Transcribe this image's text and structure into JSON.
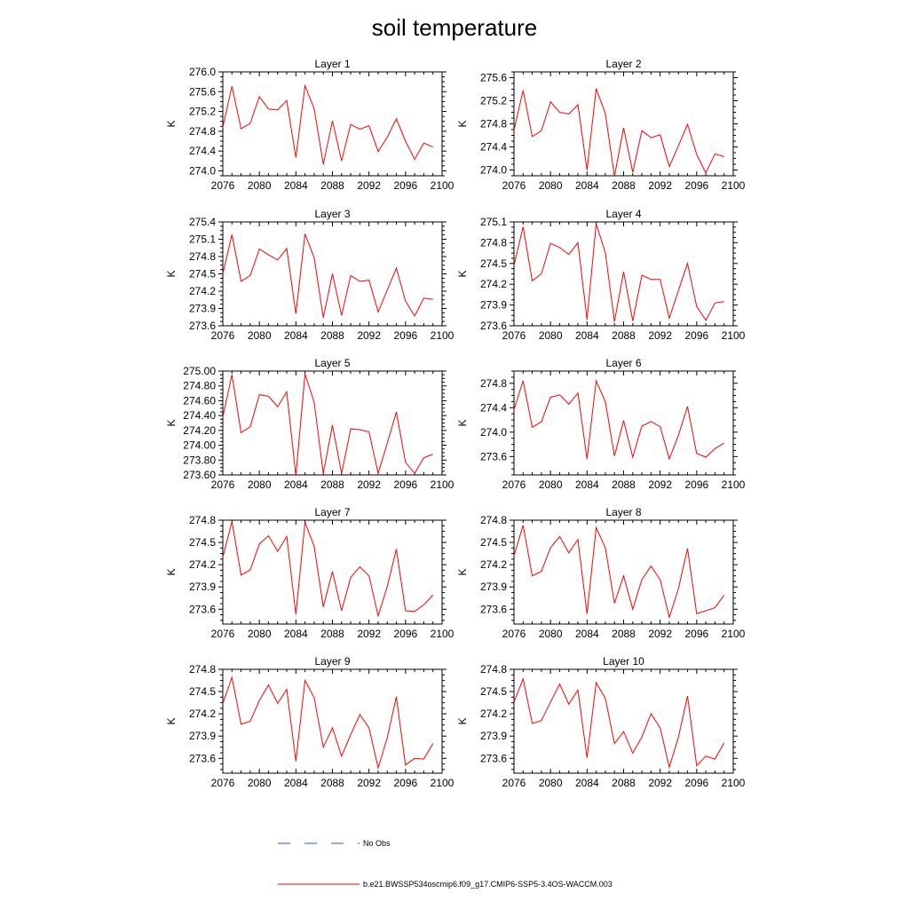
{
  "title": "soil temperature",
  "legend": [
    {
      "label": "No Obs",
      "color": "#3a4fd8",
      "dash": true
    },
    {
      "label": "b.e21.BWSSP534oscmip6.f09_g17.CMIP6-SSP5-3.4OS-WACCM.003",
      "color": "#ff0000",
      "dash": false
    }
  ],
  "chart_data": [
    {
      "type": "line",
      "title": "Layer 1",
      "ylabel": "K",
      "xlim": [
        2076,
        2100
      ],
      "ylim": [
        273.9,
        276.0
      ],
      "xticks": [
        "2076",
        "2080",
        "2084",
        "2088",
        "2092",
        "2096",
        "2100"
      ],
      "yticks": [
        "274.0",
        "274.4",
        "274.8",
        "275.2",
        "275.6",
        "276.0"
      ],
      "series": [
        {
          "color": "#ff0000",
          "x": [
            2076,
            2077,
            2078,
            2079,
            2080,
            2081,
            2082,
            2083,
            2084,
            2085,
            2086,
            2087,
            2088,
            2089,
            2090,
            2091,
            2092,
            2093,
            2094,
            2095,
            2096,
            2097,
            2098,
            2099
          ],
          "y": [
            274.88,
            275.71,
            274.85,
            274.96,
            275.5,
            275.25,
            275.23,
            275.42,
            274.27,
            275.72,
            275.26,
            274.13,
            275.01,
            274.2,
            274.94,
            274.84,
            274.91,
            274.39,
            274.68,
            275.05,
            274.6,
            274.23,
            274.56,
            274.48
          ]
        }
      ]
    },
    {
      "type": "line",
      "title": "Layer 2",
      "ylabel": "K",
      "xlim": [
        2076,
        2100
      ],
      "ylim": [
        273.9,
        275.7
      ],
      "xticks": [
        "2076",
        "2080",
        "2084",
        "2088",
        "2092",
        "2096",
        "2100"
      ],
      "yticks": [
        "274.0",
        "274.4",
        "274.8",
        "275.2",
        "275.6"
      ],
      "series": [
        {
          "color": "#ff0000",
          "x": [
            2076,
            2077,
            2078,
            2079,
            2080,
            2081,
            2082,
            2083,
            2084,
            2085,
            2086,
            2087,
            2088,
            2089,
            2090,
            2091,
            2092,
            2093,
            2094,
            2095,
            2096,
            2097,
            2098,
            2099
          ],
          "y": [
            274.69,
            275.38,
            274.58,
            274.68,
            275.18,
            275.0,
            274.97,
            275.13,
            274.0,
            275.41,
            274.98,
            273.89,
            274.73,
            273.96,
            274.68,
            274.56,
            274.61,
            274.06,
            274.42,
            274.79,
            274.27,
            273.95,
            274.28,
            274.23
          ]
        }
      ]
    },
    {
      "type": "line",
      "title": "Layer 3",
      "ylabel": "K",
      "xlim": [
        2076,
        2100
      ],
      "ylim": [
        273.6,
        275.4
      ],
      "xticks": [
        "2076",
        "2080",
        "2084",
        "2088",
        "2092",
        "2096",
        "2100"
      ],
      "yticks": [
        "273.6",
        "273.9",
        "274.2",
        "274.5",
        "274.8",
        "275.1",
        "275.4"
      ],
      "series": [
        {
          "color": "#ff0000",
          "x": [
            2076,
            2077,
            2078,
            2079,
            2080,
            2081,
            2082,
            2083,
            2084,
            2085,
            2086,
            2087,
            2088,
            2089,
            2090,
            2091,
            2092,
            2093,
            2094,
            2095,
            2096,
            2097,
            2098,
            2099
          ],
          "y": [
            274.5,
            275.18,
            274.37,
            274.47,
            274.93,
            274.83,
            274.74,
            274.94,
            273.81,
            275.19,
            274.78,
            273.74,
            274.5,
            273.78,
            274.47,
            274.37,
            274.39,
            273.84,
            274.22,
            274.6,
            274.03,
            273.77,
            274.08,
            274.06
          ]
        }
      ]
    },
    {
      "type": "line",
      "title": "Layer 4",
      "ylabel": "K",
      "xlim": [
        2076,
        2100
      ],
      "ylim": [
        273.6,
        275.1
      ],
      "xticks": [
        "2076",
        "2080",
        "2084",
        "2088",
        "2092",
        "2096",
        "2100"
      ],
      "yticks": [
        "273.6",
        "273.9",
        "274.2",
        "274.5",
        "274.8",
        "275.1"
      ],
      "series": [
        {
          "color": "#ff0000",
          "x": [
            2076,
            2077,
            2078,
            2079,
            2080,
            2081,
            2082,
            2083,
            2084,
            2085,
            2086,
            2087,
            2088,
            2089,
            2090,
            2091,
            2092,
            2093,
            2094,
            2095,
            2096,
            2097,
            2098,
            2099
          ],
          "y": [
            274.47,
            275.03,
            274.25,
            274.35,
            274.79,
            274.73,
            274.63,
            274.8,
            273.69,
            275.07,
            274.66,
            273.66,
            274.38,
            273.67,
            274.33,
            274.27,
            274.27,
            273.71,
            274.11,
            274.5,
            273.88,
            273.68,
            273.93,
            273.95
          ]
        }
      ]
    },
    {
      "type": "line",
      "title": "Layer 5",
      "ylabel": "K",
      "xlim": [
        2076,
        2100
      ],
      "ylim": [
        273.6,
        275.0
      ],
      "xticks": [
        "2076",
        "2080",
        "2084",
        "2088",
        "2092",
        "2096",
        "2100"
      ],
      "yticks": [
        "273.60",
        "273.80",
        "274.00",
        "274.20",
        "274.40",
        "274.60",
        "274.80",
        "275.00"
      ],
      "series": [
        {
          "color": "#ff0000",
          "x": [
            2076,
            2077,
            2078,
            2079,
            2080,
            2081,
            2082,
            2083,
            2084,
            2085,
            2086,
            2087,
            2088,
            2089,
            2090,
            2091,
            2092,
            2093,
            2094,
            2095,
            2096,
            2097,
            2098,
            2099
          ],
          "y": [
            274.38,
            274.95,
            274.17,
            274.25,
            274.68,
            274.66,
            274.52,
            274.72,
            273.59,
            274.96,
            274.58,
            273.62,
            274.27,
            273.62,
            274.22,
            274.21,
            274.18,
            273.62,
            274.03,
            274.45,
            273.77,
            273.62,
            273.83,
            273.88
          ]
        }
      ]
    },
    {
      "type": "line",
      "title": "Layer 6",
      "ylabel": "K",
      "xlim": [
        2076,
        2100
      ],
      "ylim": [
        273.3,
        275.0
      ],
      "xticks": [
        "2076",
        "2080",
        "2084",
        "2088",
        "2092",
        "2096",
        "2100"
      ],
      "yticks": [
        "273.6",
        "274.0",
        "274.4",
        "274.8"
      ],
      "series": [
        {
          "color": "#ff0000",
          "x": [
            2076,
            2077,
            2078,
            2079,
            2080,
            2081,
            2082,
            2083,
            2084,
            2085,
            2086,
            2087,
            2088,
            2089,
            2090,
            2091,
            2092,
            2093,
            2094,
            2095,
            2096,
            2097,
            2098,
            2099
          ],
          "y": [
            274.37,
            274.84,
            274.08,
            274.17,
            274.57,
            274.61,
            274.46,
            274.64,
            273.56,
            274.84,
            274.5,
            273.61,
            274.19,
            273.59,
            274.1,
            274.17,
            274.09,
            273.56,
            273.95,
            274.42,
            273.65,
            273.59,
            273.73,
            273.82
          ]
        }
      ]
    },
    {
      "type": "line",
      "title": "Layer 7",
      "ylabel": "K",
      "xlim": [
        2076,
        2100
      ],
      "ylim": [
        273.4,
        274.8
      ],
      "xticks": [
        "2076",
        "2080",
        "2084",
        "2088",
        "2092",
        "2096",
        "2100"
      ],
      "yticks": [
        "273.6",
        "273.9",
        "274.2",
        "274.5",
        "274.8"
      ],
      "series": [
        {
          "color": "#ff0000",
          "x": [
            2076,
            2077,
            2078,
            2079,
            2080,
            2081,
            2082,
            2083,
            2084,
            2085,
            2086,
            2087,
            2088,
            2089,
            2090,
            2091,
            2092,
            2093,
            2094,
            2095,
            2096,
            2097,
            2098,
            2099
          ],
          "y": [
            274.3,
            274.78,
            274.06,
            274.13,
            274.48,
            274.59,
            274.38,
            274.58,
            273.53,
            274.77,
            274.45,
            273.63,
            274.11,
            273.58,
            274.03,
            274.17,
            274.05,
            273.51,
            273.91,
            274.41,
            273.58,
            273.57,
            273.66,
            273.79
          ]
        }
      ]
    },
    {
      "type": "line",
      "title": "Layer 8",
      "ylabel": "K",
      "xlim": [
        2076,
        2100
      ],
      "ylim": [
        273.4,
        274.8
      ],
      "xticks": [
        "2076",
        "2080",
        "2084",
        "2088",
        "2092",
        "2096",
        "2100"
      ],
      "yticks": [
        "273.6",
        "273.9",
        "274.2",
        "274.5",
        "274.8"
      ],
      "series": [
        {
          "color": "#ff0000",
          "x": [
            2076,
            2077,
            2078,
            2079,
            2080,
            2081,
            2082,
            2083,
            2084,
            2085,
            2086,
            2087,
            2088,
            2089,
            2090,
            2091,
            2092,
            2093,
            2094,
            2095,
            2096,
            2097,
            2098,
            2099
          ],
          "y": [
            274.32,
            274.73,
            274.05,
            274.11,
            274.43,
            274.58,
            274.36,
            274.54,
            273.54,
            274.7,
            274.43,
            273.68,
            274.05,
            273.6,
            274.0,
            274.18,
            274.0,
            273.49,
            273.88,
            274.42,
            273.54,
            273.58,
            273.62,
            273.79
          ]
        }
      ]
    },
    {
      "type": "line",
      "title": "Layer 9",
      "ylabel": "K",
      "xlim": [
        2076,
        2100
      ],
      "ylim": [
        273.4,
        274.8
      ],
      "xticks": [
        "2076",
        "2080",
        "2084",
        "2088",
        "2092",
        "2096",
        "2100"
      ],
      "yticks": [
        "273.6",
        "273.9",
        "274.2",
        "274.5",
        "274.8"
      ],
      "series": [
        {
          "color": "#ff0000",
          "x": [
            2076,
            2077,
            2078,
            2079,
            2080,
            2081,
            2082,
            2083,
            2084,
            2085,
            2086,
            2087,
            2088,
            2089,
            2090,
            2091,
            2092,
            2093,
            2094,
            2095,
            2096,
            2097,
            2098,
            2099
          ],
          "y": [
            274.34,
            274.69,
            274.06,
            274.1,
            274.38,
            274.59,
            274.34,
            274.53,
            273.56,
            274.65,
            274.42,
            273.75,
            274.01,
            273.63,
            273.92,
            274.19,
            274.01,
            273.47,
            273.88,
            274.43,
            273.51,
            273.6,
            273.59,
            273.8
          ]
        }
      ]
    },
    {
      "type": "line",
      "title": "Layer 10",
      "ylabel": "K",
      "xlim": [
        2076,
        2100
      ],
      "ylim": [
        273.4,
        274.8
      ],
      "xticks": [
        "2076",
        "2080",
        "2084",
        "2088",
        "2092",
        "2096",
        "2100"
      ],
      "yticks": [
        "273.6",
        "273.9",
        "274.2",
        "274.5",
        "274.8"
      ],
      "series": [
        {
          "color": "#ff0000",
          "x": [
            2076,
            2077,
            2078,
            2079,
            2080,
            2081,
            2082,
            2083,
            2084,
            2085,
            2086,
            2087,
            2088,
            2089,
            2090,
            2091,
            2092,
            2093,
            2094,
            2095,
            2096,
            2097,
            2098,
            2099
          ],
          "y": [
            274.36,
            274.67,
            274.07,
            274.11,
            274.36,
            274.6,
            274.33,
            274.52,
            273.61,
            274.62,
            274.41,
            273.8,
            273.96,
            273.67,
            273.89,
            274.2,
            274.01,
            273.48,
            273.89,
            274.44,
            273.5,
            273.63,
            273.59,
            273.81
          ]
        }
      ]
    }
  ]
}
